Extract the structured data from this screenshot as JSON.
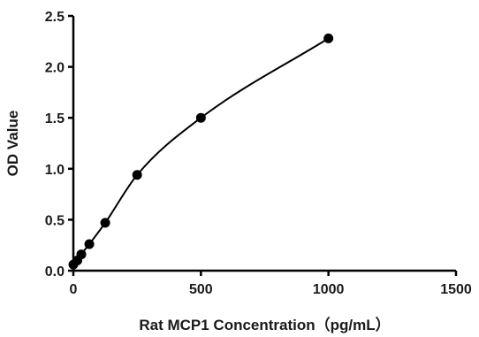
{
  "chart_data": {
    "type": "scatter",
    "title": "",
    "xlabel": "Rat MCP1 Concentration（pg/mL）",
    "ylabel": "OD Value",
    "xlim": [
      0,
      1500
    ],
    "ylim": [
      0,
      2.5
    ],
    "x_ticks": [
      0,
      500,
      1000,
      1500
    ],
    "x_tick_labels": [
      "0",
      "500",
      "1000",
      "1500"
    ],
    "y_ticks": [
      0,
      0.5,
      1.0,
      1.5,
      2.0,
      2.5
    ],
    "y_tick_labels": [
      "0.0",
      "0.5",
      "1.0",
      "1.5",
      "2.0",
      "2.5"
    ],
    "grid": false,
    "legend": "none",
    "series": [
      {
        "x": [
          0,
          15.6,
          31.25,
          62.5,
          125,
          250,
          500,
          1000
        ],
        "y": [
          0.06,
          0.1,
          0.16,
          0.26,
          0.47,
          0.94,
          1.5,
          2.28
        ],
        "marker": "circle",
        "color": "#000000",
        "fit_line": true
      }
    ]
  }
}
